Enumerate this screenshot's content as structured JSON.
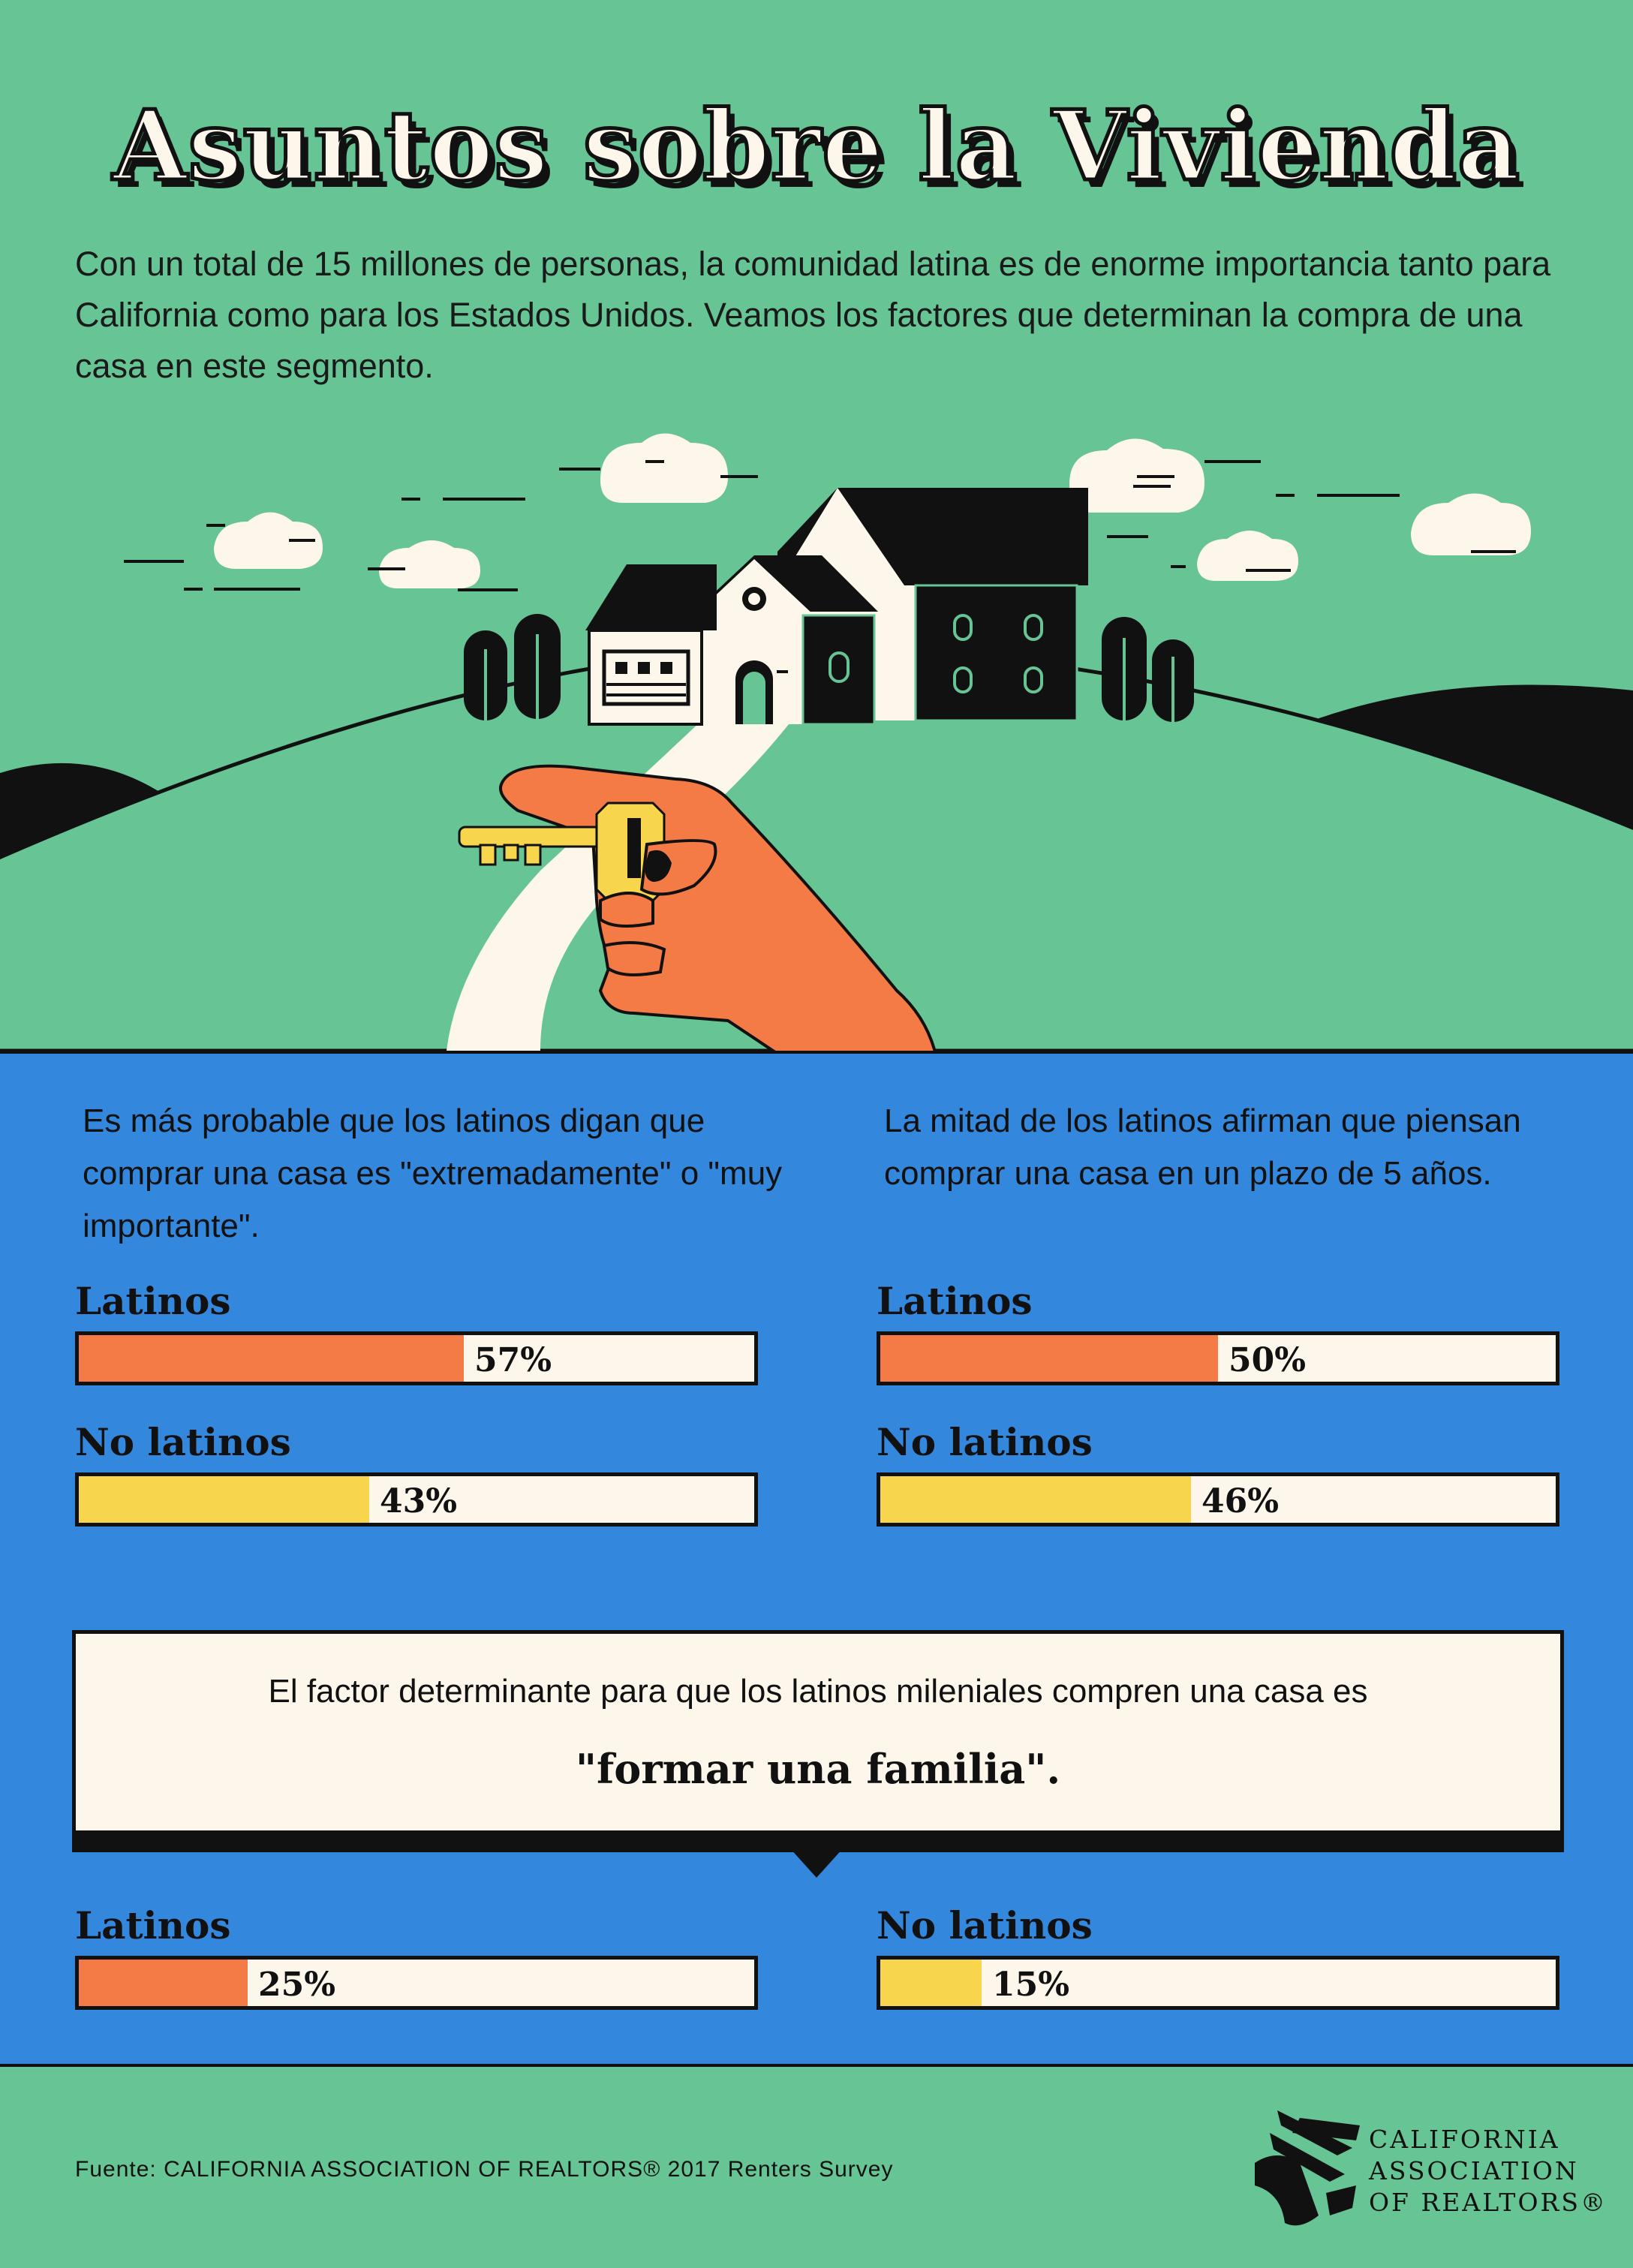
{
  "header": {
    "title": "Asuntos sobre la Vivienda",
    "intro": "Con un total de 15 millones de personas, la comunidad latina es de enorme importancia tanto para California como para los Estados Unidos. Veamos los factores que determinan la compra de una casa en este segmento."
  },
  "colors": {
    "green": "#66c495",
    "blue": "#3388dd",
    "orange": "#f47a46",
    "yellow": "#f7d54c",
    "cream": "#fdf6ea",
    "ink": "#111111"
  },
  "illustration": {
    "icons": [
      "cloud-icon",
      "house-icon",
      "tree-icon",
      "hill-icon",
      "hand-holding-key-icon",
      "path-icon"
    ]
  },
  "stats": {
    "left": {
      "description": "Es más probable que los latinos digan que comprar una casa es \"extremadamente\" o \"muy  importante\".",
      "bars": [
        {
          "label": "Latinos",
          "value_text": "57%",
          "value": 57,
          "color": "orange"
        },
        {
          "label": "No latinos",
          "value_text": "43%",
          "value": 43,
          "color": "yellow"
        }
      ]
    },
    "right": {
      "description": "La  mitad de los latinos afirman que piensan comprar una casa en un plazo de 5 años.",
      "bars": [
        {
          "label": "Latinos",
          "value_text": "50%",
          "value": 50,
          "color": "orange"
        },
        {
          "label": "No latinos",
          "value_text": "46%",
          "value": 46,
          "color": "yellow"
        }
      ]
    },
    "callout": {
      "text": "El factor determinante para que los latinos mileniales compren una casa es",
      "quote": "\"formar una familia\"."
    },
    "bottom": [
      {
        "label": "Latinos",
        "value_text": "25%",
        "value": 25,
        "color": "orange"
      },
      {
        "label": "No latinos",
        "value_text": "15%",
        "value": 15,
        "color": "yellow"
      }
    ]
  },
  "footer": {
    "source": "Fuente: CALIFORNIA ASSOCIATION OF REALTORS® 2017 Renters Survey",
    "logo_lines": [
      "CALIFORNIA",
      "ASSOCIATION",
      "OF REALTORS®"
    ]
  }
}
